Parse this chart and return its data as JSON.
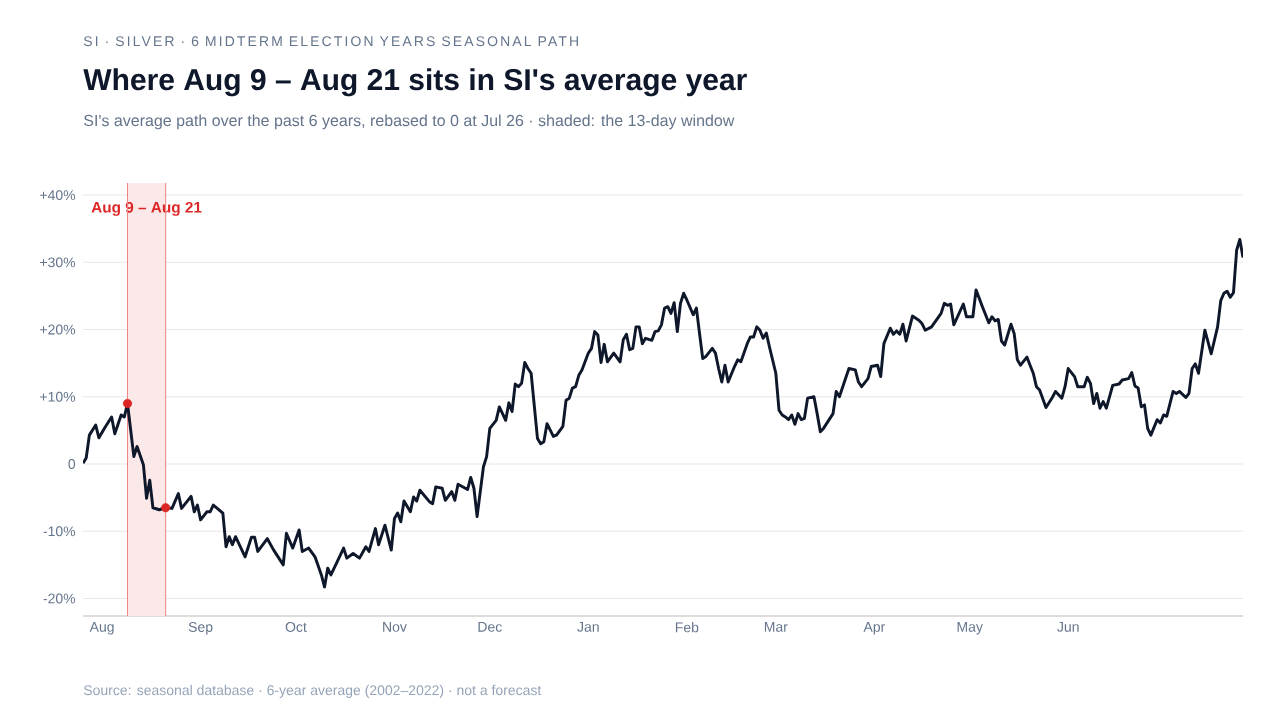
{
  "chart_data": {
    "type": "line",
    "title": "Where Aug 9 – Aug 21 sits in SI's average year",
    "subtitle": "SI's average path over the past 6 years, rebased to 0 at Jul 26 · shaded: the 13-day window",
    "annotations": [
      "SI · SILVER · 6 MIDTERM ELECTION YEARS SEASONAL PATH",
      "Source: seasonal database · 6-year average (2002–2022) · not a forecast"
    ],
    "xlim": [
      "2021-07-26",
      "2022-07-26"
    ],
    "xticks": [
      {
        "value": "2021-08-01",
        "label": "Aug"
      },
      {
        "value": "2021-09-01",
        "label": "Sep"
      },
      {
        "value": "2021-10-01",
        "label": "Oct"
      },
      {
        "value": "2021-11-01",
        "label": "Nov"
      },
      {
        "value": "2021-12-01",
        "label": "Dec"
      },
      {
        "value": "2022-01-01",
        "label": "Jan"
      },
      {
        "value": "2022-02-01",
        "label": "Feb"
      },
      {
        "value": "2022-03-01",
        "label": "Mar"
      },
      {
        "value": "2022-04-01",
        "label": "Apr"
      },
      {
        "value": "2022-05-01",
        "label": "May"
      },
      {
        "value": "2022-06-01",
        "label": "Jun"
      }
    ],
    "ylim": [
      -22.6,
      41.8
    ],
    "yticks": [
      {
        "value": -20,
        "label": "-20%"
      },
      {
        "value": -10,
        "label": "-10%"
      },
      0,
      {
        "value": 10,
        "label": "+10%"
      },
      {
        "value": 20,
        "label": "+20%"
      },
      {
        "value": 30,
        "label": "+30%"
      },
      {
        "value": 40,
        "label": "+40%"
      }
    ],
    "grid": "y",
    "bands": [
      {
        "axis": "x",
        "from": "2021-08-09",
        "to": "2021-08-21",
        "label": "Aug 9 – Aug 21",
        "color": "#fbe9e9"
      }
    ],
    "ref_lines": [
      {
        "axis": "x",
        "value": "2021-08-09",
        "color": "#ec8888"
      },
      {
        "axis": "x",
        "value": "2021-08-21",
        "color": "#ec8888"
      }
    ],
    "series": [
      {
        "color": "#0f172a",
        "marker": "none",
        "line_style": "solid",
        "x": [
          "2021-07-26",
          "2021-07-27",
          "2021-07-28",
          "2021-07-30",
          "2021-07-31",
          "2021-08-02",
          "2021-08-04",
          "2021-08-05",
          "2021-08-07",
          "2021-08-08",
          "2021-08-09",
          "2021-08-11",
          "2021-08-12",
          "2021-08-14",
          "2021-08-15",
          "2021-08-16",
          "2021-08-17",
          "2021-08-19",
          "2021-08-21",
          "2021-08-23",
          "2021-08-25",
          "2021-08-26",
          "2021-08-29",
          "2021-08-30",
          "2021-08-31",
          "2021-09-01",
          "2021-09-03",
          "2021-09-04",
          "2021-09-05",
          "2021-09-08",
          "2021-09-09",
          "2021-09-10",
          "2021-09-11",
          "2021-09-12",
          "2021-09-15",
          "2021-09-17",
          "2021-09-18",
          "2021-09-19",
          "2021-09-22",
          "2021-09-24",
          "2021-09-27",
          "2021-09-28",
          "2021-09-30",
          "2021-10-02",
          "2021-10-03",
          "2021-10-05",
          "2021-10-07",
          "2021-10-09",
          "2021-10-10",
          "2021-10-11",
          "2021-10-12",
          "2021-10-14",
          "2021-10-16",
          "2021-10-17",
          "2021-10-19",
          "2021-10-21",
          "2021-10-23",
          "2021-10-24",
          "2021-10-26",
          "2021-10-27",
          "2021-10-29",
          "2021-10-31",
          "2021-11-01",
          "2021-11-02",
          "2021-11-03",
          "2021-11-04",
          "2021-11-06",
          "2021-11-07",
          "2021-11-08",
          "2021-11-09",
          "2021-11-12",
          "2021-11-13",
          "2021-11-14",
          "2021-11-16",
          "2021-11-17",
          "2021-11-19",
          "2021-11-20",
          "2021-11-21",
          "2021-11-24",
          "2021-11-25",
          "2021-11-26",
          "2021-11-27",
          "2021-11-29",
          "2021-11-30",
          "2021-12-01",
          "2021-12-03",
          "2021-12-04",
          "2021-12-06",
          "2021-12-07",
          "2021-12-08",
          "2021-12-09",
          "2021-12-10",
          "2021-12-11",
          "2021-12-12",
          "2021-12-13",
          "2021-12-14",
          "2021-12-16",
          "2021-12-17",
          "2021-12-18",
          "2021-12-19",
          "2021-12-21",
          "2021-12-22",
          "2021-12-24",
          "2021-12-25",
          "2021-12-26",
          "2021-12-27",
          "2021-12-28",
          "2021-12-29",
          "2021-12-30",
          "2022-01-01",
          "2022-01-02",
          "2022-01-03",
          "2022-01-04",
          "2022-01-05",
          "2022-01-06",
          "2022-01-07",
          "2022-01-09",
          "2022-01-11",
          "2022-01-12",
          "2022-01-13",
          "2022-01-14",
          "2022-01-15",
          "2022-01-16",
          "2022-01-17",
          "2022-01-18",
          "2022-01-19",
          "2022-01-21",
          "2022-01-22",
          "2022-01-23",
          "2022-01-24",
          "2022-01-25",
          "2022-01-26",
          "2022-01-27",
          "2022-01-28",
          "2022-01-29",
          "2022-01-30",
          "2022-01-31",
          "2022-02-01",
          "2022-02-03",
          "2022-02-04",
          "2022-02-05",
          "2022-02-06",
          "2022-02-07",
          "2022-02-09",
          "2022-02-10",
          "2022-02-11",
          "2022-02-12",
          "2022-02-13",
          "2022-02-14",
          "2022-02-16",
          "2022-02-17",
          "2022-02-18",
          "2022-02-20",
          "2022-02-21",
          "2022-02-22",
          "2022-02-23",
          "2022-02-24",
          "2022-02-25",
          "2022-02-26",
          "2022-02-27",
          "2022-03-01",
          "2022-03-02",
          "2022-03-03",
          "2022-03-04",
          "2022-03-05",
          "2022-03-06",
          "2022-03-07",
          "2022-03-08",
          "2022-03-09",
          "2022-03-10",
          "2022-03-11",
          "2022-03-13",
          "2022-03-14",
          "2022-03-15",
          "2022-03-16",
          "2022-03-19",
          "2022-03-20",
          "2022-03-21",
          "2022-03-24",
          "2022-03-26",
          "2022-03-27",
          "2022-03-28",
          "2022-03-30",
          "2022-03-31",
          "2022-04-02",
          "2022-04-03",
          "2022-04-04",
          "2022-04-06",
          "2022-04-07",
          "2022-04-08",
          "2022-04-09",
          "2022-04-10",
          "2022-04-11",
          "2022-04-13",
          "2022-04-15",
          "2022-04-16",
          "2022-04-17",
          "2022-04-19",
          "2022-04-22",
          "2022-04-23",
          "2022-04-24",
          "2022-04-25",
          "2022-04-26",
          "2022-04-29",
          "2022-04-30",
          "2022-05-02",
          "2022-05-03",
          "2022-05-05",
          "2022-05-07",
          "2022-05-08",
          "2022-05-09",
          "2022-05-10",
          "2022-05-11",
          "2022-05-12",
          "2022-05-14",
          "2022-05-15",
          "2022-05-16",
          "2022-05-17",
          "2022-05-19",
          "2022-05-20",
          "2022-05-21",
          "2022-05-22",
          "2022-05-23",
          "2022-05-25",
          "2022-05-27",
          "2022-05-28",
          "2022-05-30",
          "2022-05-31",
          "2022-06-01",
          "2022-06-03",
          "2022-06-04",
          "2022-06-06",
          "2022-06-07",
          "2022-06-08",
          "2022-06-09",
          "2022-06-10",
          "2022-06-11",
          "2022-06-12",
          "2022-06-13",
          "2022-06-15",
          "2022-06-17",
          "2022-06-18",
          "2022-06-20",
          "2022-06-21",
          "2022-06-22",
          "2022-06-23",
          "2022-06-24",
          "2022-06-25",
          "2022-06-26",
          "2022-06-27",
          "2022-06-29",
          "2022-06-30",
          "2022-07-01",
          "2022-07-02",
          "2022-07-04",
          "2022-07-05",
          "2022-07-06",
          "2022-07-08",
          "2022-07-09",
          "2022-07-10",
          "2022-07-11",
          "2022-07-12",
          "2022-07-14",
          "2022-07-16",
          "2022-07-18",
          "2022-07-19",
          "2022-07-20",
          "2022-07-21",
          "2022-07-22",
          "2022-07-23",
          "2022-07-24",
          "2022-07-25",
          "2022-07-26"
        ],
        "values": [
          0.1,
          0.9,
          4.3,
          5.8,
          3.9,
          5.5,
          7.0,
          4.5,
          7.3,
          7.0,
          9.0,
          1.1,
          2.6,
          -0.1,
          -5.1,
          -2.4,
          -6.5,
          -6.8,
          -6.5,
          -6.6,
          -4.4,
          -6.6,
          -4.8,
          -7.1,
          -6.1,
          -8.3,
          -7.1,
          -7.1,
          -6.1,
          -7.3,
          -12.3,
          -10.8,
          -12.0,
          -10.8,
          -13.8,
          -10.9,
          -10.9,
          -13.0,
          -11.1,
          -12.8,
          -15.0,
          -10.3,
          -12.5,
          -9.8,
          -13.0,
          -12.5,
          -13.8,
          -16.5,
          -18.3,
          -15.5,
          -16.5,
          -14.5,
          -12.5,
          -14.0,
          -13.3,
          -14.0,
          -12.3,
          -13.0,
          -9.6,
          -12.0,
          -9.1,
          -12.8,
          -8.1,
          -7.3,
          -8.6,
          -5.5,
          -7.1,
          -4.9,
          -5.5,
          -3.9,
          -5.6,
          -5.9,
          -3.4,
          -3.6,
          -5.4,
          -4.1,
          -5.4,
          -3.0,
          -3.8,
          -2.0,
          -3.6,
          -7.8,
          -0.4,
          1.1,
          5.3,
          6.5,
          8.5,
          6.5,
          9.1,
          7.8,
          11.9,
          11.5,
          12.0,
          15.1,
          14.2,
          13.5,
          3.8,
          3.0,
          3.3,
          6.0,
          4.1,
          4.3,
          5.6,
          9.5,
          9.8,
          11.3,
          11.5,
          13.2,
          14.0,
          16.5,
          17.2,
          19.7,
          19.2,
          15.1,
          17.8,
          15.2,
          16.5,
          15.2,
          18.5,
          19.3,
          17.0,
          17.2,
          20.4,
          20.4,
          17.9,
          18.7,
          18.4,
          19.7,
          19.8,
          20.7,
          23.2,
          23.4,
          22.4,
          24.0,
          19.7,
          23.9,
          25.4,
          24.4,
          22.2,
          23.2,
          19.4,
          15.7,
          16.0,
          17.2,
          16.5,
          14.2,
          12.2,
          14.7,
          12.2,
          14.5,
          15.5,
          15.2,
          17.9,
          18.9,
          18.9,
          20.4,
          19.9,
          18.7,
          19.5,
          17.4,
          13.5,
          8.0,
          7.3,
          7.0,
          6.6,
          7.3,
          5.9,
          7.5,
          6.6,
          6.8,
          9.8,
          10.0,
          7.5,
          4.8,
          5.3,
          7.5,
          10.8,
          10.0,
          14.2,
          14.0,
          12.2,
          11.5,
          12.7,
          14.5,
          14.7,
          13.0,
          17.9,
          20.2,
          19.3,
          19.8,
          19.3,
          20.8,
          18.3,
          22.0,
          21.4,
          20.9,
          19.9,
          20.4,
          22.4,
          23.9,
          23.6,
          23.8,
          20.7,
          23.8,
          21.9,
          21.9,
          25.9,
          23.4,
          21.0,
          21.9,
          21.3,
          21.5,
          18.3,
          17.7,
          20.8,
          19.4,
          15.5,
          14.7,
          15.9,
          14.7,
          13.5,
          11.5,
          11.0,
          8.4,
          9.9,
          10.8,
          9.8,
          11.5,
          14.2,
          13.0,
          11.5,
          11.5,
          12.9,
          12.0,
          9.0,
          10.5,
          8.3,
          9.3,
          8.3,
          11.7,
          11.9,
          12.5,
          12.7,
          13.6,
          11.6,
          11.3,
          8.5,
          8.8,
          5.3,
          4.3,
          6.6,
          6.1,
          7.3,
          7.1,
          10.8,
          10.5,
          10.8,
          9.9,
          10.5,
          14.2,
          14.9,
          13.5,
          19.9,
          16.4,
          20.4,
          24.3,
          25.4,
          25.7,
          24.8,
          25.5,
          31.8,
          33.4,
          30.7
        ]
      },
      {
        "type": "scatter",
        "color": "#dc2626",
        "marker": "circle",
        "x": [
          "2021-08-09",
          "2021-08-21"
        ],
        "values": [
          9.0,
          -6.5
        ]
      }
    ]
  }
}
